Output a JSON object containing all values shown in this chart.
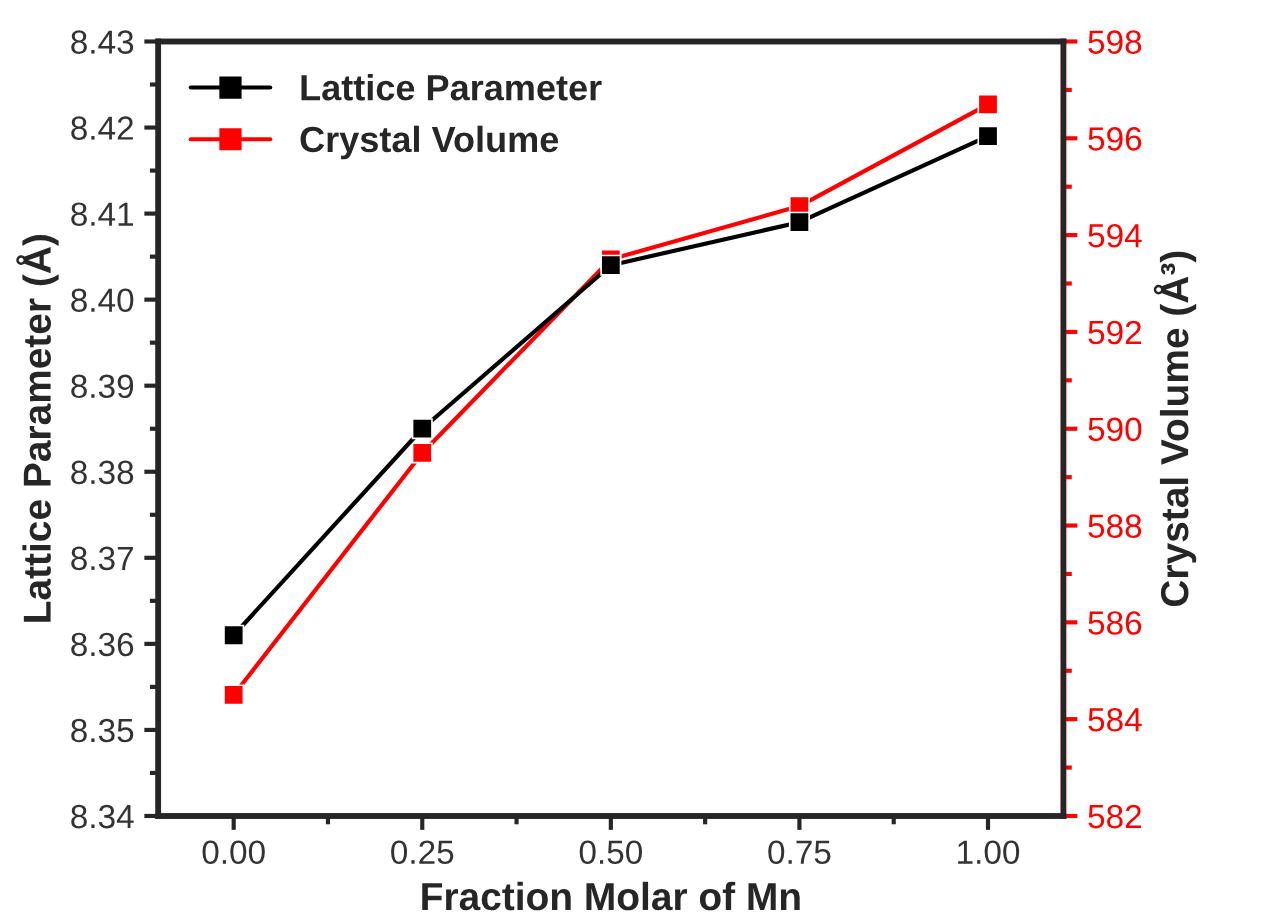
{
  "chart_data": {
    "type": "line",
    "xlabel": "Fraction Molar of Mn",
    "ylabel": "Lattice Parameter (Å)",
    "y2label": "Crystal Volume (Å³)",
    "x": [
      0.0,
      0.25,
      0.5,
      0.75,
      1.0
    ],
    "series": [
      {
        "name": "Lattice Parameter",
        "color": "#000000",
        "axis": "y",
        "values": [
          8.361,
          8.385,
          8.404,
          8.409,
          8.419
        ]
      },
      {
        "name": "Crystal Volume",
        "color": "#ff0000",
        "axis": "y2",
        "values": [
          584.5,
          589.5,
          593.5,
          594.6,
          596.7
        ]
      }
    ],
    "xlim": [
      -0.1,
      1.1
    ],
    "xticks": [
      {
        "value": 0,
        "label": "0.00"
      },
      {
        "value": 0.25,
        "label": "0.25"
      },
      {
        "value": 0.5,
        "label": "0.50"
      },
      {
        "value": 0.75,
        "label": "0.75"
      },
      {
        "value": 1,
        "label": "1.00"
      }
    ],
    "ylim": [
      8.34,
      8.43
    ],
    "yticks": [
      {
        "value": 8.34,
        "label": "8.34"
      },
      8.35,
      8.36,
      8.37,
      8.38,
      8.39,
      {
        "value": 8.4,
        "label": "8.40"
      },
      8.41,
      8.42,
      8.43
    ],
    "y2lim": [
      582,
      598
    ],
    "y2ticks": [
      582,
      584,
      586,
      588,
      590,
      592,
      594,
      596,
      598
    ],
    "marker": "square",
    "line_style": "solid",
    "legend": "top left",
    "grid": false
  }
}
